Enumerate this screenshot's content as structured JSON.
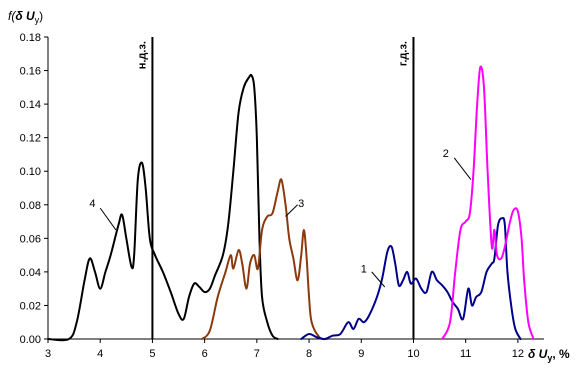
{
  "chart_data": {
    "type": "line",
    "xlabel": "δ U_y, %",
    "ylabel": "f(δ U_y)",
    "xlim": [
      3,
      12.5
    ],
    "ylim": [
      0,
      0.18
    ],
    "x_ticks": [
      "3",
      "4",
      "5",
      "6",
      "7",
      "8",
      "9",
      "10",
      "11",
      "12"
    ],
    "y_ticks": [
      "0.00",
      "0.02",
      "0.04",
      "0.06",
      "0.08",
      "0.10",
      "0.12",
      "0.14",
      "0.16",
      "0.18"
    ],
    "grid": false,
    "reference_lines": [
      {
        "x": 5,
        "label": "н.д.з."
      },
      {
        "x": 10,
        "label": "г.д.з."
      }
    ],
    "series": [
      {
        "name": "4",
        "color": "#000000",
        "points": [
          [
            3.0,
            0.0
          ],
          [
            3.4,
            0.0
          ],
          [
            3.55,
            0.01
          ],
          [
            3.7,
            0.035
          ],
          [
            3.8,
            0.048
          ],
          [
            3.9,
            0.04
          ],
          [
            4.0,
            0.03
          ],
          [
            4.1,
            0.04
          ],
          [
            4.2,
            0.05
          ],
          [
            4.35,
            0.068
          ],
          [
            4.42,
            0.074
          ],
          [
            4.5,
            0.06
          ],
          [
            4.6,
            0.043
          ],
          [
            4.65,
            0.05
          ],
          [
            4.72,
            0.095
          ],
          [
            4.8,
            0.105
          ],
          [
            4.87,
            0.09
          ],
          [
            4.95,
            0.06
          ],
          [
            5.05,
            0.05
          ],
          [
            5.2,
            0.04
          ],
          [
            5.35,
            0.028
          ],
          [
            5.5,
            0.015
          ],
          [
            5.6,
            0.012
          ],
          [
            5.7,
            0.025
          ],
          [
            5.8,
            0.033
          ],
          [
            5.9,
            0.031
          ],
          [
            6.0,
            0.028
          ],
          [
            6.1,
            0.03
          ],
          [
            6.2,
            0.038
          ],
          [
            6.35,
            0.05
          ],
          [
            6.45,
            0.068
          ],
          [
            6.55,
            0.1
          ],
          [
            6.65,
            0.135
          ],
          [
            6.75,
            0.15
          ],
          [
            6.85,
            0.156
          ],
          [
            6.9,
            0.157
          ],
          [
            6.95,
            0.15
          ],
          [
            7.0,
            0.12
          ],
          [
            7.05,
            0.06
          ],
          [
            7.1,
            0.025
          ],
          [
            7.2,
            0.01
          ],
          [
            7.3,
            0.002
          ],
          [
            7.4,
            0.0
          ]
        ]
      },
      {
        "name": "3",
        "color": "#8b3a0e",
        "points": [
          [
            5.95,
            0.0
          ],
          [
            6.1,
            0.005
          ],
          [
            6.25,
            0.025
          ],
          [
            6.4,
            0.04
          ],
          [
            6.5,
            0.05
          ],
          [
            6.55,
            0.042
          ],
          [
            6.65,
            0.053
          ],
          [
            6.72,
            0.045
          ],
          [
            6.8,
            0.03
          ],
          [
            6.87,
            0.045
          ],
          [
            6.95,
            0.05
          ],
          [
            7.02,
            0.042
          ],
          [
            7.1,
            0.065
          ],
          [
            7.2,
            0.073
          ],
          [
            7.3,
            0.075
          ],
          [
            7.4,
            0.088
          ],
          [
            7.47,
            0.095
          ],
          [
            7.55,
            0.08
          ],
          [
            7.62,
            0.06
          ],
          [
            7.7,
            0.048
          ],
          [
            7.78,
            0.035
          ],
          [
            7.85,
            0.05
          ],
          [
            7.9,
            0.065
          ],
          [
            7.95,
            0.05
          ],
          [
            8.0,
            0.025
          ],
          [
            8.05,
            0.01
          ],
          [
            8.2,
            0.001
          ],
          [
            8.35,
            0.0
          ]
        ]
      },
      {
        "name": "1",
        "color": "#00008b",
        "points": [
          [
            7.85,
            0.0
          ],
          [
            8.0,
            0.003
          ],
          [
            8.15,
            0.001
          ],
          [
            8.3,
            0.0
          ],
          [
            8.45,
            0.002
          ],
          [
            8.6,
            0.003
          ],
          [
            8.75,
            0.01
          ],
          [
            8.85,
            0.006
          ],
          [
            8.95,
            0.012
          ],
          [
            9.05,
            0.01
          ],
          [
            9.15,
            0.014
          ],
          [
            9.3,
            0.025
          ],
          [
            9.4,
            0.036
          ],
          [
            9.5,
            0.052
          ],
          [
            9.58,
            0.055
          ],
          [
            9.65,
            0.045
          ],
          [
            9.72,
            0.032
          ],
          [
            9.8,
            0.035
          ],
          [
            9.88,
            0.04
          ],
          [
            9.95,
            0.033
          ],
          [
            10.05,
            0.036
          ],
          [
            10.15,
            0.03
          ],
          [
            10.25,
            0.028
          ],
          [
            10.35,
            0.04
          ],
          [
            10.45,
            0.035
          ],
          [
            10.55,
            0.032
          ],
          [
            10.65,
            0.028
          ],
          [
            10.75,
            0.022
          ],
          [
            10.85,
            0.018
          ],
          [
            10.95,
            0.012
          ],
          [
            11.05,
            0.03
          ],
          [
            11.12,
            0.02
          ],
          [
            11.2,
            0.025
          ],
          [
            11.3,
            0.028
          ],
          [
            11.4,
            0.04
          ],
          [
            11.5,
            0.045
          ],
          [
            11.55,
            0.048
          ],
          [
            11.62,
            0.068
          ],
          [
            11.7,
            0.072
          ],
          [
            11.75,
            0.068
          ],
          [
            11.8,
            0.04
          ],
          [
            11.88,
            0.018
          ],
          [
            11.95,
            0.006
          ],
          [
            12.05,
            0.0
          ]
        ]
      },
      {
        "name": "2",
        "color": "#ff00ff",
        "points": [
          [
            10.55,
            0.0
          ],
          [
            10.7,
            0.01
          ],
          [
            10.8,
            0.04
          ],
          [
            10.9,
            0.065
          ],
          [
            11.0,
            0.07
          ],
          [
            11.08,
            0.075
          ],
          [
            11.15,
            0.1
          ],
          [
            11.22,
            0.14
          ],
          [
            11.28,
            0.162
          ],
          [
            11.35,
            0.15
          ],
          [
            11.42,
            0.1
          ],
          [
            11.5,
            0.055
          ],
          [
            11.55,
            0.065
          ],
          [
            11.6,
            0.05
          ],
          [
            11.68,
            0.048
          ],
          [
            11.75,
            0.055
          ],
          [
            11.85,
            0.07
          ],
          [
            11.92,
            0.077
          ],
          [
            12.0,
            0.076
          ],
          [
            12.07,
            0.06
          ],
          [
            12.12,
            0.035
          ],
          [
            12.2,
            0.01
          ],
          [
            12.3,
            0.0
          ]
        ]
      }
    ]
  },
  "axes": {
    "ylabel_prefix": "f(",
    "ylabel_symbol": "δ U",
    "ylabel_sub": "y",
    "ylabel_suffix": ")",
    "xlabel_symbol": "δ U",
    "xlabel_sub": "y",
    "xlabel_suffix": ", %"
  }
}
